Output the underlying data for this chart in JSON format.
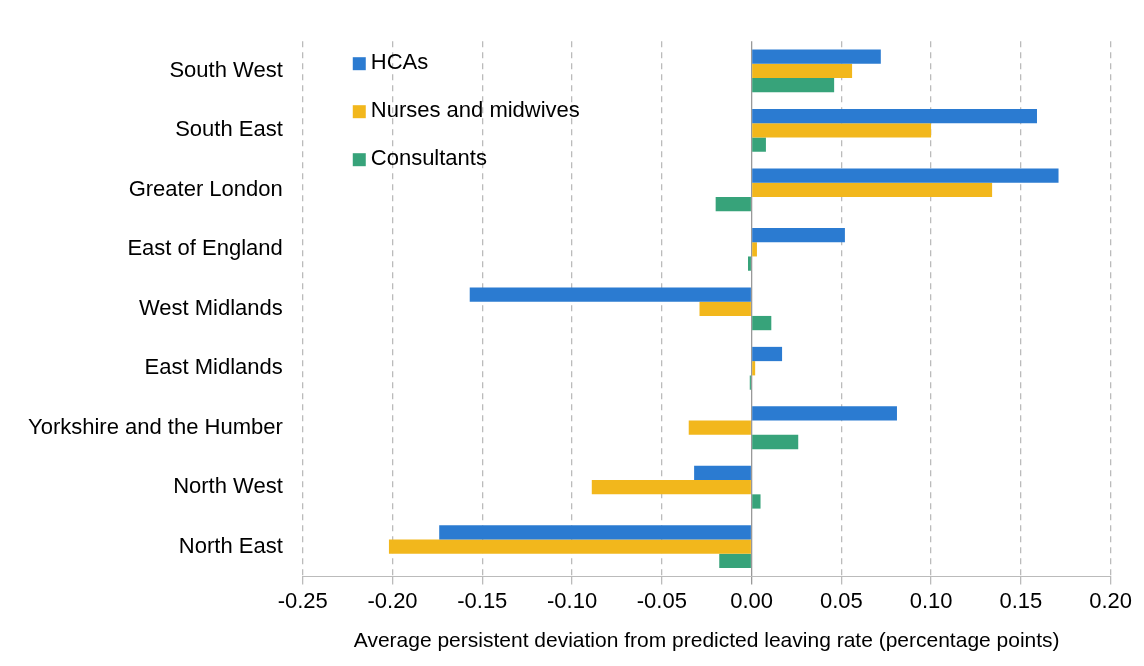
{
  "chart_data": {
    "type": "bar",
    "orientation": "horizontal",
    "xlabel": "Average persistent deviation from predicted leaving rate (percentage points)",
    "categories": [
      "South West",
      "South East",
      "Greater London",
      "East of England",
      "West Midlands",
      "East Midlands",
      "Yorkshire and the Humber",
      "North West",
      "North East"
    ],
    "series": [
      {
        "name": "HCAs",
        "color": "#2b7bd1",
        "values": [
          0.072,
          0.159,
          0.171,
          0.052,
          -0.157,
          0.017,
          0.081,
          -0.032,
          -0.174
        ]
      },
      {
        "name": "Nurses and midwives",
        "color": "#f2b71c",
        "values": [
          0.056,
          0.1,
          0.134,
          0.003,
          -0.029,
          0.002,
          -0.035,
          -0.089,
          -0.202
        ]
      },
      {
        "name": "Consultants",
        "color": "#37a37a",
        "values": [
          0.046,
          0.008,
          -0.02,
          -0.002,
          0.011,
          -0.001,
          0.026,
          0.005,
          -0.018
        ]
      }
    ],
    "xlim": [
      -0.25,
      0.2
    ],
    "xticks": [
      {
        "value": -0.25,
        "label": "-0.25"
      },
      {
        "value": -0.2,
        "label": "-0.20"
      },
      {
        "value": -0.15,
        "label": "-0.15"
      },
      {
        "value": -0.1,
        "label": "-0.10"
      },
      {
        "value": -0.05,
        "label": "-0.05"
      },
      {
        "value": 0,
        "label": "0.00"
      },
      {
        "value": 0.05,
        "label": "0.05"
      },
      {
        "value": 0.1,
        "label": "0.10"
      },
      {
        "value": 0.15,
        "label": "0.15"
      },
      {
        "value": 0.2,
        "label": "0.20"
      }
    ],
    "grid": "x",
    "legend": "top left"
  }
}
